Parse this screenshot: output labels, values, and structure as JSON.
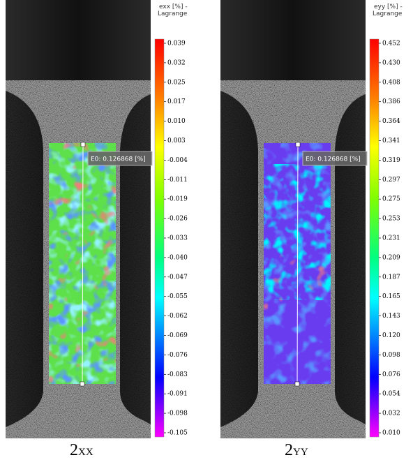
{
  "panels": [
    {
      "colorbar": {
        "title_line1": "exx [%] -",
        "title_line2": "Lagrange",
        "labels": [
          "0.039",
          "0.032",
          "0.025",
          "0.017",
          "0.010",
          "0.003",
          "-0.004",
          "-0.011",
          "-0.019",
          "-0.026",
          "-0.033",
          "-0.040",
          "-0.047",
          "-0.055",
          "-0.062",
          "-0.069",
          "-0.076",
          "-0.083",
          "-0.091",
          "-0.098",
          "-0.105"
        ]
      },
      "annotation": "E0: 0.126868 [%]",
      "caption": {
        "main": "2",
        "sub": "XX"
      }
    },
    {
      "colorbar": {
        "title_line1": "eyy [%] -",
        "title_line2": "Lagrange",
        "labels": [
          "0.452",
          "0.430",
          "0.408",
          "0.386",
          "0.364",
          "0.341",
          "0.319",
          "0.297",
          "0.275",
          "0.253",
          "0.231",
          "0.209",
          "0.187",
          "0.165",
          "0.143",
          "0.120",
          "0.098",
          "0.076",
          "0.054",
          "0.032",
          "0.010"
        ]
      },
      "annotation": "E0: 0.126868 [%]",
      "caption": {
        "main": "2",
        "sub": "YY"
      }
    }
  ]
}
